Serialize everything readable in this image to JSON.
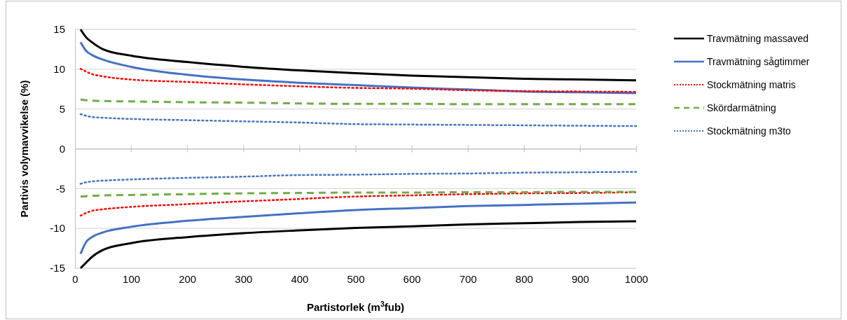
{
  "chart_data": {
    "type": "line",
    "xlabel": "Partistorlek (m$^{3}$fub)",
    "ylabel": "Partivis volymavvikelse (%)",
    "x": [
      10,
      20,
      30,
      50,
      100,
      200,
      300,
      400,
      500,
      600,
      700,
      800,
      900,
      1000
    ],
    "xlim": [
      0,
      1000
    ],
    "xticks": [
      0,
      100,
      200,
      300,
      400,
      500,
      600,
      700,
      800,
      900,
      1000
    ],
    "ylim": [
      -15,
      15
    ],
    "yticks": [
      -15,
      -10,
      -5,
      0,
      5,
      10,
      15
    ],
    "grid": "y",
    "legend": "right",
    "marker": "none",
    "series": [
      {
        "name": "Travmätning massaved",
        "color": "#000000",
        "line_style": "solid",
        "values": [
          15,
          14,
          13.4,
          12.5,
          11.7,
          10.9,
          10.3,
          9.85,
          9.5,
          9.2,
          9.0,
          8.8,
          8.7,
          8.6
        ]
      },
      {
        "name": "Travmätning sågtimmer",
        "color": "#4472c4",
        "line_style": "solid",
        "values": [
          13.4,
          12.3,
          11.8,
          11.2,
          10.3,
          9.3,
          8.7,
          8.3,
          8.0,
          7.7,
          7.45,
          7.2,
          7.1,
          7.0
        ]
      },
      {
        "name": "Stockmätning matris",
        "color": "#ff0000",
        "line_style": "dotted",
        "values": [
          10.05,
          9.7,
          9.4,
          9.1,
          8.7,
          8.4,
          8.1,
          7.85,
          7.65,
          7.55,
          7.35,
          7.25,
          7.2,
          7.15
        ]
      },
      {
        "name": "Skördarmätning",
        "color": "#70ad47",
        "line_style": "dashed",
        "values": [
          6.2,
          6.1,
          6.05,
          6.0,
          5.95,
          5.85,
          5.8,
          5.7,
          5.65,
          5.65,
          5.6,
          5.6,
          5.6,
          5.6
        ]
      },
      {
        "name": "Stockmätning m3to",
        "color": "#4472c4",
        "line_style": "dotted",
        "values": [
          4.35,
          4.15,
          4.0,
          3.9,
          3.75,
          3.6,
          3.45,
          3.3,
          3.1,
          3.05,
          3.0,
          2.95,
          2.9,
          2.85
        ]
      },
      {
        "color": "#000000",
        "line_style": "solid",
        "values": [
          -15,
          -14.3,
          -13.6,
          -12.7,
          -11.85,
          -11.1,
          -10.6,
          -10.25,
          -9.95,
          -9.75,
          -9.5,
          -9.35,
          -9.2,
          -9.1
        ]
      },
      {
        "color": "#4472c4",
        "line_style": "solid",
        "values": [
          -13.2,
          -11.7,
          -11.1,
          -10.5,
          -9.8,
          -9.05,
          -8.55,
          -8.1,
          -7.7,
          -7.45,
          -7.2,
          -7.05,
          -6.9,
          -6.75
        ]
      },
      {
        "color": "#ff0000",
        "line_style": "dotted",
        "values": [
          -8.4,
          -8.05,
          -7.8,
          -7.6,
          -7.3,
          -6.95,
          -6.6,
          -6.3,
          -6.0,
          -5.85,
          -5.7,
          -5.6,
          -5.55,
          -5.45
        ]
      },
      {
        "color": "#70ad47",
        "line_style": "dashed",
        "values": [
          -6.0,
          -5.95,
          -5.9,
          -5.85,
          -5.8,
          -5.7,
          -5.6,
          -5.55,
          -5.5,
          -5.5,
          -5.45,
          -5.45,
          -5.4,
          -5.4
        ]
      },
      {
        "color": "#4472c4",
        "line_style": "dotted",
        "values": [
          -4.4,
          -4.2,
          -4.1,
          -4.0,
          -3.85,
          -3.65,
          -3.5,
          -3.3,
          -3.25,
          -3.15,
          -3.1,
          -3.0,
          -2.95,
          -2.9
        ]
      }
    ]
  }
}
